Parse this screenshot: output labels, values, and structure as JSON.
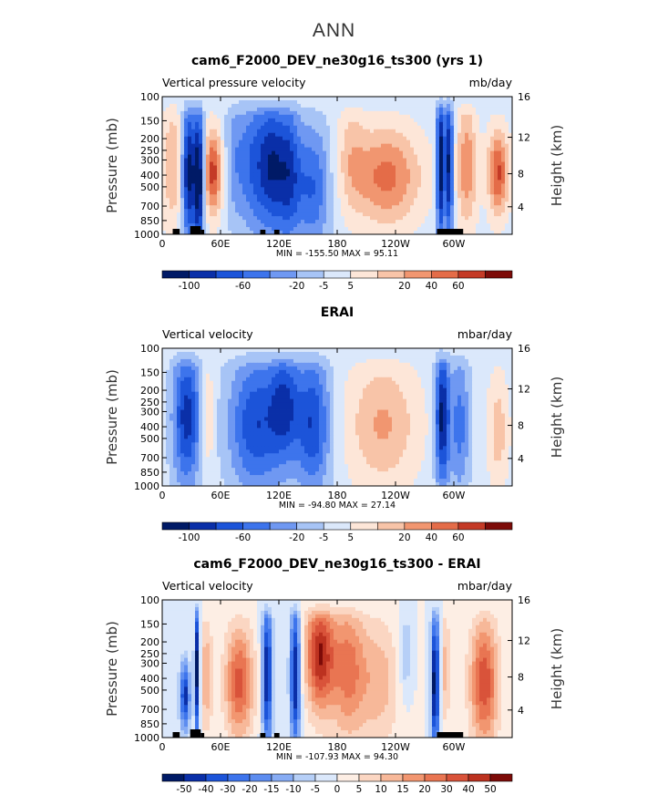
{
  "page": {
    "title": "ANN"
  },
  "palettes": {
    "blue_red_12": [
      "#001a66",
      "#0a2fa8",
      "#1c54d9",
      "#3d74ec",
      "#6f98f2",
      "#a7c4f6",
      "#dbe8fb",
      "#fde6d8",
      "#f8c4a8",
      "#f19670",
      "#e46c48",
      "#c43a26",
      "#7d0b08"
    ],
    "blue_red_16": [
      "#001a66",
      "#0a2fa8",
      "#1c54d9",
      "#3d74ec",
      "#5d8df0",
      "#87acf4",
      "#b6cff7",
      "#dbe8fb",
      "#fdeee4",
      "#fbd6c2",
      "#f7b899",
      "#f29670",
      "#e97552",
      "#d9533a",
      "#bc3220",
      "#7d0b08"
    ]
  },
  "chart_data": [
    {
      "type": "heatmap",
      "panel": "top",
      "title": "cam6_F2000_DEV_ne30g16_ts300 (yrs 1)",
      "left_label": "Vertical pressure velocity",
      "right_label": "mb/day",
      "ylabel": "Pressure (mb)",
      "ylabel_right": "Height (km)",
      "x_ticks": [
        "0",
        "60E",
        "120E",
        "180",
        "120W",
        "60W"
      ],
      "y_ticks": [
        "100",
        "150",
        "200",
        "250",
        "300",
        "400",
        "500",
        "700",
        "850",
        "1000"
      ],
      "y_right_ticks": [
        "16",
        "12",
        "8",
        "4"
      ],
      "stats": "MIN = -155.50   MAX =   95.11",
      "colorbar_labels": [
        "-100",
        "-60",
        "-20",
        "-5",
        "5",
        "20",
        "40",
        "60"
      ],
      "palette": "blue_red_12",
      "topography": true
    },
    {
      "type": "heatmap",
      "panel": "middle",
      "title": "ERAI",
      "left_label": "Vertical velocity",
      "right_label": "mbar/day",
      "ylabel": "Pressure (mb)",
      "ylabel_right": "Height (km)",
      "x_ticks": [
        "0",
        "60E",
        "120E",
        "180",
        "120W",
        "60W"
      ],
      "y_ticks": [
        "100",
        "150",
        "200",
        "250",
        "300",
        "400",
        "500",
        "700",
        "850",
        "1000"
      ],
      "y_right_ticks": [
        "16",
        "12",
        "8",
        "4"
      ],
      "stats": "MIN = -94.80   MAX =   27.14",
      "colorbar_labels": [
        "-100",
        "-60",
        "-20",
        "-5",
        "5",
        "20",
        "40",
        "60"
      ],
      "palette": "blue_red_12",
      "topography": false
    },
    {
      "type": "heatmap",
      "panel": "bottom",
      "title": "cam6_F2000_DEV_ne30g16_ts300 - ERAI",
      "left_label": "Vertical velocity",
      "right_label": "mbar/day",
      "ylabel": "Pressure (mb)",
      "ylabel_right": "Height (km)",
      "x_ticks": [
        "0",
        "60E",
        "120E",
        "180",
        "120W",
        "60W"
      ],
      "y_ticks": [
        "100",
        "150",
        "200",
        "250",
        "300",
        "400",
        "500",
        "700",
        "850",
        "1000"
      ],
      "y_right_ticks": [
        "16",
        "12",
        "8",
        "4"
      ],
      "stats": "MIN = -107.93   MAX =   94.30",
      "colorbar_labels": [
        "-50",
        "-40",
        "-30",
        "-20",
        "-15",
        "-10",
        "-5",
        "0",
        "5",
        "10",
        "15",
        "20",
        "30",
        "40",
        "50"
      ],
      "palette": "blue_red_16",
      "topography": true
    }
  ]
}
